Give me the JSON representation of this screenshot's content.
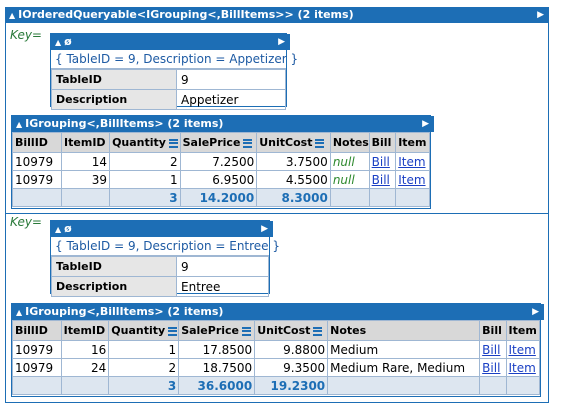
{
  "title": "IOrderedQueryable<IGrouping<,BillItems>> (2 items)",
  "key_label": "Key=",
  "groups": [
    {
      "key": {
        "header": "ø",
        "summary": "{ TableID = 9, Description = Appetizer }",
        "rows": [
          {
            "label": "TableID",
            "value": "9"
          },
          {
            "label": "Description",
            "value": "Appetizer"
          }
        ]
      },
      "items": {
        "header": "IGrouping<,BillItems> (2 items)",
        "columns": [
          "BillID",
          "ItemID",
          "Quantity",
          "SalePrice",
          "UnitCost",
          "Notes",
          "Bill",
          "Item"
        ],
        "rows": [
          [
            "10979",
            "14",
            "2",
            "7.2500",
            "3.7500",
            "null",
            "Bill",
            "Item"
          ],
          [
            "10979",
            "39",
            "1",
            "6.9500",
            "4.5500",
            "null",
            "Bill",
            "Item"
          ]
        ],
        "totals": {
          "quantity": "3",
          "saleprice": "14.2000",
          "unitcost": "8.3000"
        }
      }
    },
    {
      "key": {
        "header": "ø",
        "summary": "{ TableID = 9, Description = Entree }",
        "rows": [
          {
            "label": "TableID",
            "value": "9"
          },
          {
            "label": "Description",
            "value": "Entree"
          }
        ]
      },
      "items": {
        "header": "IGrouping<,BillItems> (2 items)",
        "columns": [
          "BillID",
          "ItemID",
          "Quantity",
          "SalePrice",
          "UnitCost",
          "Notes",
          "Bill",
          "Item"
        ],
        "rows": [
          [
            "10979",
            "16",
            "1",
            "17.8500",
            "9.8800",
            "Medium",
            "Bill",
            "Item"
          ],
          [
            "10979",
            "24",
            "2",
            "18.7500",
            "9.3500",
            "Medium Rare, Medium",
            "Bill",
            "Item"
          ]
        ],
        "totals": {
          "quantity": "3",
          "saleprice": "36.6000",
          "unitcost": "19.2300"
        }
      }
    }
  ],
  "colors": {
    "header_blue": "#1d6eb5",
    "key_green": "#2a7a3a",
    "null_green": "#2f8a2f",
    "link_blue": "#1a3fc4"
  },
  "icons": {
    "collapse": "triangle-up-icon",
    "expand": "triangle-right-icon",
    "sum": "sum-column-icon"
  }
}
